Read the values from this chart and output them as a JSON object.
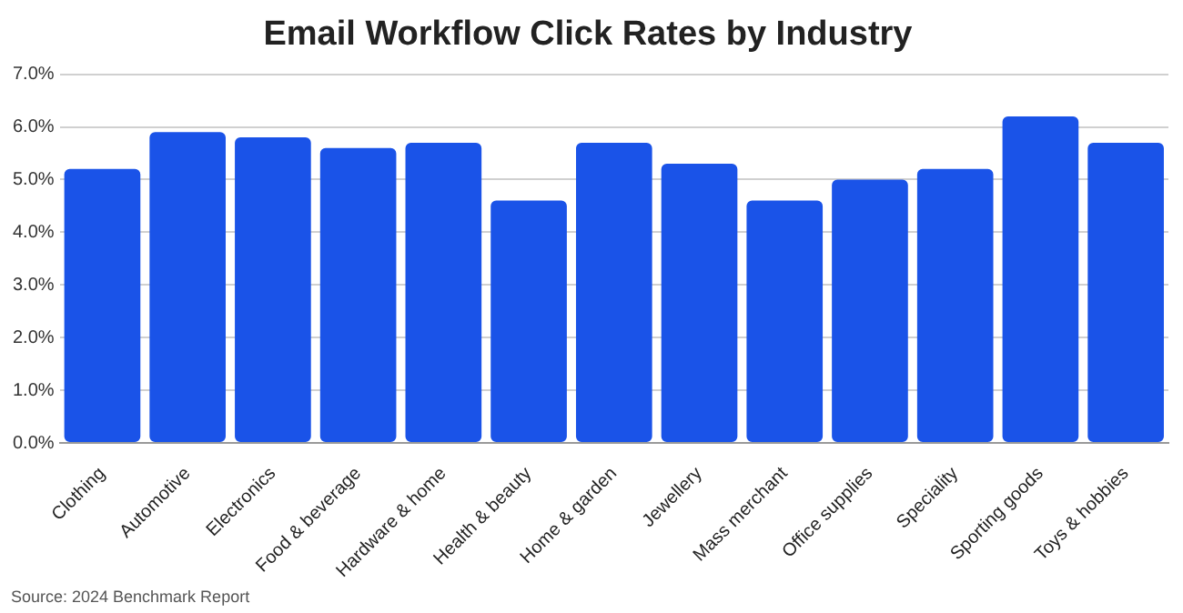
{
  "chart_data": {
    "type": "bar",
    "title": "Email Workflow Click Rates by Industry",
    "categories": [
      "Clothing",
      "Automotive",
      "Electronics",
      "Food & beverage",
      "Hardware & home",
      "Health & beauty",
      "Home & garden",
      "Jewellery",
      "Mass merchant",
      "Office supplies",
      "Speciality",
      "Sporting goods",
      "Toys & hobbies"
    ],
    "values": [
      5.2,
      5.9,
      5.8,
      5.6,
      5.7,
      4.6,
      5.7,
      5.3,
      4.6,
      5.0,
      5.2,
      6.2,
      5.7
    ],
    "color": "#1a53e8",
    "ylim": [
      0,
      7
    ],
    "yticks": [
      {
        "value": 0,
        "label": "0.0%"
      },
      {
        "value": 1,
        "label": "1.0%"
      },
      {
        "value": 2,
        "label": "2.0%"
      },
      {
        "value": 3,
        "label": "3.0%"
      },
      {
        "value": 4,
        "label": "4.0%"
      },
      {
        "value": 5,
        "label": "5.0%"
      },
      {
        "value": 6,
        "label": "6.0%"
      },
      {
        "value": 7,
        "label": "7.0%"
      }
    ],
    "grid": "y",
    "legend": false,
    "annotations": [
      "Source: 2024 Benchmark Report"
    ]
  }
}
